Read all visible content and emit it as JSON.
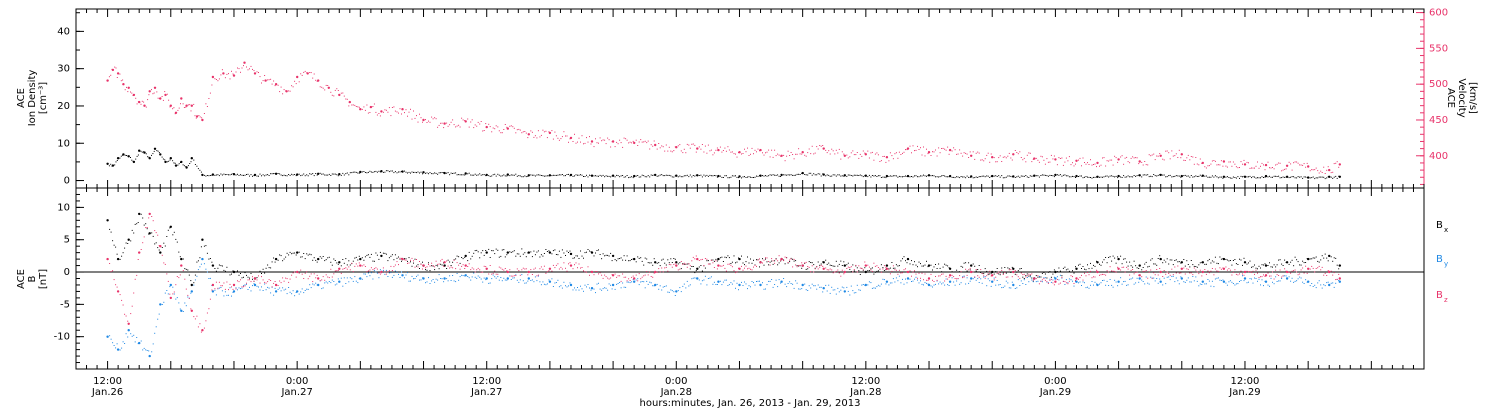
{
  "chart_data": [
    {
      "type": "scatter",
      "panel": "top",
      "ylabel_left": [
        "ACE",
        "Ion Density",
        "[cm⁻³]"
      ],
      "ylabel_right": [
        "ACE",
        "Velocity",
        "[km/s]"
      ],
      "ylim_left": [
        -2,
        46
      ],
      "ylim_right": [
        355,
        605
      ],
      "yticks_left": [
        "0",
        "10",
        "20",
        "30",
        "40"
      ],
      "yticks_right": [
        "400",
        "450",
        "500",
        "550",
        "600"
      ],
      "series": [
        {
          "color": "#000000",
          "axis": "left",
          "x": [
            0,
            1,
            2,
            3,
            4,
            5,
            6,
            7,
            8,
            9,
            10,
            11,
            12,
            13,
            14,
            15,
            16,
            18,
            20,
            24,
            28,
            32,
            36,
            40,
            44,
            48,
            52,
            56,
            60,
            64,
            68,
            72,
            76,
            80,
            84,
            88,
            92,
            96,
            100,
            104,
            108,
            112,
            116,
            120,
            124,
            128,
            132,
            136,
            140,
            144,
            148,
            152,
            156,
            160,
            164,
            168,
            172,
            176,
            180,
            184,
            188,
            192,
            196,
            200,
            204,
            208,
            212,
            216,
            220,
            224,
            228,
            232,
            234
          ],
          "y": [
            4.5,
            4,
            6,
            7,
            6.5,
            5,
            8,
            7.5,
            6,
            8.5,
            7,
            5,
            6,
            4,
            5,
            3.5,
            6,
            1.5,
            1.6,
            1.7,
            1.5,
            1.8,
            1.6,
            1.8,
            1.7,
            2.3,
            2.5,
            2.4,
            2.2,
            2.0,
            1.9,
            1.5,
            1.6,
            1.4,
            1.4,
            1.5,
            1.3,
            1.3,
            1.2,
            1.5,
            1.3,
            1.4,
            1.2,
            1.1,
            1.3,
            1.5,
            2.0,
            1.6,
            1.4,
            1.3,
            1.2,
            1.2,
            1.4,
            1.2,
            1.1,
            1.2,
            1.1,
            1.3,
            1.5,
            1.2,
            1.0,
            1.2,
            1.4,
            1.5,
            1.2,
            1.3,
            1.0,
            1.0,
            1.2,
            1.0,
            0.8,
            1.0,
            1.0
          ]
        },
        {
          "color": "#e8336a",
          "axis": "right",
          "x": [
            0,
            1,
            2,
            3,
            4,
            5,
            6,
            7,
            8,
            9,
            10,
            11,
            12,
            13,
            14,
            15,
            16,
            17,
            18,
            20,
            22,
            24,
            26,
            28,
            30,
            32,
            34,
            36,
            38,
            40,
            42,
            44,
            46,
            48,
            50,
            52,
            56,
            60,
            64,
            68,
            72,
            76,
            80,
            84,
            88,
            92,
            96,
            100,
            104,
            108,
            112,
            116,
            120,
            124,
            128,
            132,
            136,
            140,
            144,
            148,
            152,
            156,
            160,
            164,
            168,
            172,
            176,
            180,
            184,
            188,
            192,
            196,
            200,
            204,
            208,
            212,
            216,
            220,
            224,
            228,
            232,
            234
          ],
          "y": [
            505,
            520,
            515,
            500,
            495,
            485,
            475,
            470,
            490,
            495,
            480,
            485,
            470,
            460,
            480,
            470,
            470,
            455,
            450,
            510,
            515,
            512,
            530,
            515,
            505,
            500,
            490,
            510,
            515,
            505,
            495,
            485,
            475,
            465,
            468,
            462,
            465,
            450,
            445,
            448,
            440,
            438,
            430,
            432,
            425,
            420,
            420,
            418,
            415,
            412,
            410,
            408,
            405,
            408,
            400,
            405,
            410,
            400,
            402,
            398,
            410,
            405,
            408,
            400,
            398,
            402,
            396,
            395,
            393,
            390,
            395,
            392,
            400,
            402,
            390,
            392,
            388,
            387,
            386,
            385,
            380,
            388
          ]
        }
      ]
    },
    {
      "type": "scatter",
      "panel": "bottom",
      "ylabel_left": [
        "ACE",
        "B",
        "[nT]"
      ],
      "ylim": [
        -15,
        13
      ],
      "yticks": [
        "-10",
        "-5",
        "0",
        "5",
        "10"
      ],
      "legend_placement": "right",
      "series": [
        {
          "name": "B",
          "subscript": "x",
          "color": "#000000",
          "x": [
            0,
            2,
            4,
            6,
            8,
            10,
            12,
            14,
            16,
            18,
            20,
            24,
            28,
            32,
            36,
            40,
            44,
            48,
            52,
            56,
            60,
            64,
            68,
            72,
            76,
            80,
            84,
            88,
            92,
            96,
            100,
            104,
            108,
            112,
            116,
            120,
            124,
            128,
            132,
            136,
            140,
            144,
            148,
            152,
            156,
            160,
            164,
            168,
            172,
            176,
            180,
            184,
            188,
            192,
            196,
            200,
            204,
            208,
            212,
            216,
            220,
            224,
            228,
            232,
            234
          ],
          "y": [
            8,
            2,
            5,
            9,
            6,
            3,
            7,
            2,
            -2,
            5,
            1,
            0,
            -1,
            2,
            3,
            2,
            1.5,
            2,
            2.5,
            2,
            1,
            1,
            2.5,
            3,
            3,
            3,
            3,
            2.8,
            3,
            2.5,
            2,
            1.5,
            1.5,
            0.5,
            2,
            2,
            1.5,
            2,
            1,
            1.5,
            1,
            0,
            1,
            2,
            1,
            0.5,
            1,
            0,
            0.5,
            -1,
            0,
            0.5,
            1.5,
            2,
            1,
            2,
            1.5,
            1.5,
            2,
            1.5,
            1,
            1.5,
            2,
            2.5,
            1
          ]
        },
        {
          "name": "B",
          "subscript": "y",
          "color": "#1e88e5",
          "x": [
            0,
            2,
            4,
            6,
            8,
            10,
            12,
            14,
            16,
            18,
            20,
            24,
            28,
            32,
            36,
            40,
            44,
            48,
            52,
            56,
            60,
            64,
            68,
            72,
            76,
            80,
            84,
            88,
            92,
            96,
            100,
            104,
            108,
            112,
            116,
            120,
            124,
            128,
            132,
            136,
            140,
            144,
            148,
            152,
            156,
            160,
            164,
            168,
            172,
            176,
            180,
            184,
            188,
            192,
            196,
            200,
            204,
            208,
            212,
            216,
            220,
            224,
            228,
            232,
            234
          ],
          "y": [
            -10,
            -12,
            -9,
            -11,
            -13,
            -5,
            -2,
            -6,
            -3,
            2,
            -3,
            -3,
            -2,
            -3,
            -3,
            -2,
            -1.5,
            -1,
            0,
            -0.5,
            -1,
            -1,
            -0.5,
            -1,
            -1,
            -1,
            -1.5,
            -2,
            -2.5,
            -2,
            -1.5,
            -2,
            -3,
            -1,
            -1.5,
            -2,
            -2,
            -1.5,
            -2,
            -2.5,
            -3,
            -2,
            -1.5,
            -1,
            -2,
            -1.5,
            -1,
            -1.5,
            -2,
            -1,
            -1,
            -1.5,
            -2,
            -1.5,
            -1,
            -1.5,
            -1,
            -1.5,
            -1.5,
            -1,
            -1.5,
            -1,
            -1.5,
            -2,
            -1.5
          ]
        },
        {
          "name": "B",
          "subscript": "z",
          "color": "#e8336a",
          "x": [
            0,
            2,
            4,
            6,
            8,
            10,
            12,
            14,
            16,
            18,
            20,
            24,
            28,
            32,
            36,
            40,
            44,
            48,
            52,
            56,
            60,
            64,
            68,
            72,
            76,
            80,
            84,
            88,
            92,
            96,
            100,
            104,
            108,
            112,
            116,
            120,
            124,
            128,
            132,
            136,
            140,
            144,
            148,
            152,
            156,
            160,
            164,
            168,
            172,
            176,
            180,
            184,
            188,
            192,
            196,
            200,
            204,
            208,
            212,
            216,
            220,
            224,
            228,
            232,
            234
          ],
          "y": [
            2,
            -3,
            -8,
            3,
            9,
            4,
            -4,
            1,
            -6,
            -9,
            -2,
            -2,
            -1,
            -2,
            0,
            -1,
            0.5,
            1,
            0,
            2,
            1,
            1.5,
            1,
            0.5,
            0,
            0,
            0.5,
            1,
            0,
            -0.5,
            -1,
            0,
            1,
            2,
            1,
            0.5,
            1.5,
            2,
            1,
            0.5,
            0,
            1,
            0.5,
            0,
            -1,
            -0.5,
            0,
            -0.5,
            0,
            -1,
            -1.5,
            -1,
            0,
            0.5,
            -0.5,
            0,
            0.5,
            0,
            0.5,
            0,
            -0.5,
            0,
            0.5,
            0,
            -1
          ]
        }
      ]
    }
  ],
  "xaxis": {
    "xlim": [
      -6,
      250
    ],
    "ticks": [
      {
        "x": 0,
        "time": "12:00",
        "date": "Jan.26"
      },
      {
        "x": 36,
        "time": "0:00",
        "date": "Jan.27"
      },
      {
        "x": 72,
        "time": "12:00",
        "date": "Jan.27"
      },
      {
        "x": 108,
        "time": "0:00",
        "date": "Jan.28"
      },
      {
        "x": 144,
        "time": "12:00",
        "date": "Jan.28"
      },
      {
        "x": 180,
        "time": "0:00",
        "date": "Jan.29"
      },
      {
        "x": 216,
        "time": "12:00",
        "date": "Jan.29"
      }
    ],
    "xlabel": "hours:minutes, Jan. 26, 2013 - Jan. 29, 2013"
  }
}
